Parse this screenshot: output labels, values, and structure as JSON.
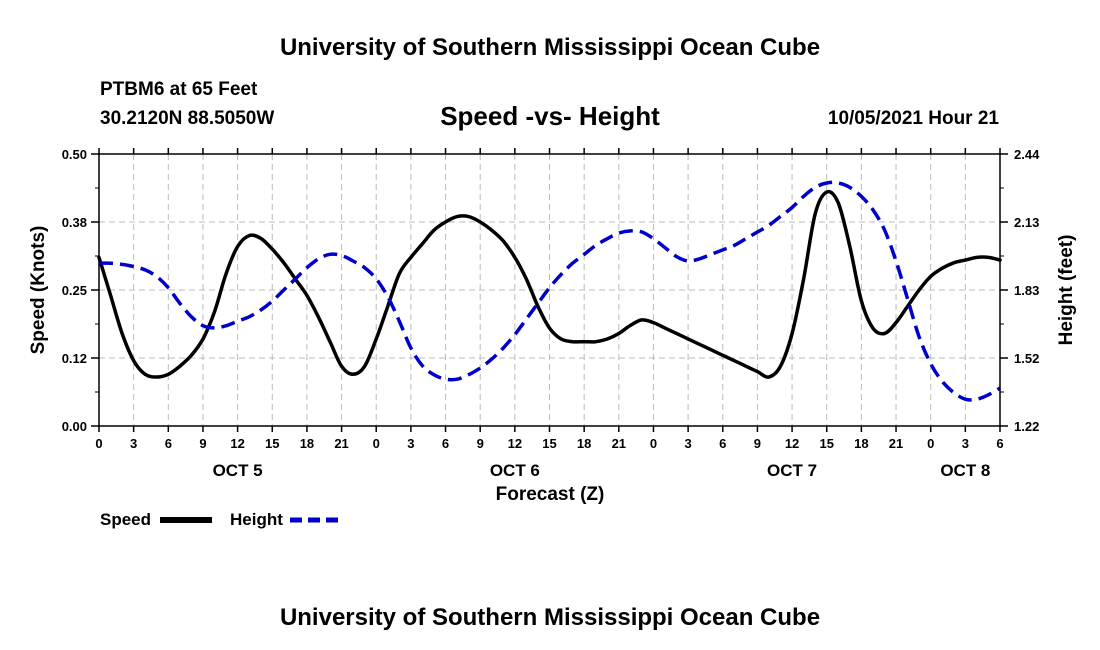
{
  "title": "University of Southern Mississippi Ocean Cube",
  "footer_title": "University of Southern Mississippi Ocean Cube",
  "station": "PTBM6 at 65 Feet",
  "coords": "30.2120N  88.5050W",
  "datetime": "10/05/2021 Hour 21",
  "chart_data": {
    "type": "line",
    "title": "Speed -vs- Height",
    "xlabel": "Forecast (Z)",
    "ylabel_left": "Speed (Knots)",
    "ylabel_right": "Height (feet)",
    "x_hours_range": [
      0,
      78
    ],
    "x_tick_step_hours": 3,
    "x_tick_labels": [
      "0",
      "3",
      "6",
      "9",
      "12",
      "15",
      "18",
      "21",
      "0",
      "3",
      "6",
      "9",
      "12",
      "15",
      "18",
      "21",
      "0",
      "3",
      "6",
      "9",
      "12",
      "15",
      "18",
      "21",
      "0",
      "3",
      "6"
    ],
    "date_labels": [
      {
        "label": "OCT 5",
        "hour": 12
      },
      {
        "label": "OCT 6",
        "hour": 36
      },
      {
        "label": "OCT 7",
        "hour": 60
      },
      {
        "label": "OCT 8",
        "hour": 75
      }
    ],
    "ylim_left": [
      0,
      0.5
    ],
    "yticks_left": [
      "0.00",
      "0.12",
      "0.25",
      "0.38",
      "0.50"
    ],
    "ylim_right": [
      1.22,
      2.44
    ],
    "yticks_right": [
      "1.22",
      "1.52",
      "1.83",
      "2.13",
      "2.44"
    ],
    "grid": true,
    "colors": {
      "speed": "#000000",
      "height": "#0000cc",
      "grid": "#bbbbbb"
    },
    "series": [
      {
        "name": "Speed",
        "axis": "left",
        "style": "solid",
        "hours": [
          0,
          1,
          2,
          3,
          4,
          5,
          6,
          7,
          8,
          9,
          10,
          11,
          12,
          13,
          14,
          15,
          16,
          17,
          18,
          19,
          20,
          21,
          22,
          23,
          24,
          25,
          26,
          27,
          28,
          29,
          30,
          31,
          32,
          33,
          34,
          35,
          36,
          37,
          38,
          39,
          40,
          41,
          42,
          43,
          44,
          45,
          46,
          47,
          48,
          49,
          50,
          51,
          52,
          53,
          54,
          55,
          56,
          57,
          58,
          59,
          60,
          61,
          62,
          63,
          64,
          65,
          66,
          67,
          68,
          69,
          70,
          71,
          72,
          73,
          74,
          75,
          76,
          77,
          78
        ],
        "values": [
          0.31,
          0.24,
          0.17,
          0.12,
          0.095,
          0.09,
          0.095,
          0.11,
          0.13,
          0.16,
          0.21,
          0.28,
          0.33,
          0.35,
          0.345,
          0.325,
          0.3,
          0.27,
          0.24,
          0.2,
          0.155,
          0.11,
          0.095,
          0.11,
          0.16,
          0.22,
          0.28,
          0.31,
          0.335,
          0.36,
          0.375,
          0.385,
          0.385,
          0.375,
          0.36,
          0.34,
          0.31,
          0.27,
          0.22,
          0.18,
          0.16,
          0.155,
          0.155,
          0.155,
          0.16,
          0.17,
          0.185,
          0.195,
          0.19,
          0.18,
          0.17,
          0.16,
          0.15,
          0.14,
          0.13,
          0.12,
          0.11,
          0.1,
          0.09,
          0.11,
          0.17,
          0.27,
          0.39,
          0.43,
          0.41,
          0.33,
          0.23,
          0.18,
          0.17,
          0.19,
          0.22,
          0.25,
          0.275,
          0.29,
          0.3,
          0.305,
          0.31,
          0.31,
          0.305
        ]
      },
      {
        "name": "Height",
        "axis": "right",
        "style": "dashed",
        "hours": [
          0,
          1,
          2,
          3,
          4,
          5,
          6,
          7,
          8,
          9,
          10,
          11,
          12,
          13,
          14,
          15,
          16,
          17,
          18,
          19,
          20,
          21,
          22,
          23,
          24,
          25,
          26,
          27,
          28,
          29,
          30,
          31,
          32,
          33,
          34,
          35,
          36,
          37,
          38,
          39,
          40,
          41,
          42,
          43,
          44,
          45,
          46,
          47,
          48,
          49,
          50,
          51,
          52,
          53,
          54,
          55,
          56,
          57,
          58,
          59,
          60,
          61,
          62,
          63,
          64,
          65,
          66,
          67,
          68,
          69,
          70,
          71,
          72,
          73,
          74,
          75,
          76,
          77,
          78
        ],
        "values": [
          1.95,
          1.95,
          1.945,
          1.935,
          1.92,
          1.89,
          1.84,
          1.77,
          1.71,
          1.67,
          1.66,
          1.67,
          1.69,
          1.71,
          1.74,
          1.78,
          1.83,
          1.88,
          1.93,
          1.97,
          1.99,
          1.985,
          1.96,
          1.93,
          1.88,
          1.8,
          1.69,
          1.57,
          1.49,
          1.45,
          1.43,
          1.43,
          1.45,
          1.48,
          1.52,
          1.57,
          1.63,
          1.7,
          1.77,
          1.84,
          1.9,
          1.95,
          1.99,
          2.03,
          2.06,
          2.085,
          2.095,
          2.09,
          2.06,
          2.02,
          1.98,
          1.96,
          1.97,
          1.99,
          2.01,
          2.03,
          2.06,
          2.09,
          2.12,
          2.16,
          2.2,
          2.25,
          2.29,
          2.31,
          2.31,
          2.29,
          2.25,
          2.19,
          2.1,
          1.96,
          1.79,
          1.62,
          1.5,
          1.42,
          1.37,
          1.34,
          1.34,
          1.36,
          1.39
        ]
      }
    ]
  },
  "legend": [
    {
      "label": "Speed",
      "series": "Speed"
    },
    {
      "label": "Height",
      "series": "Height"
    }
  ]
}
